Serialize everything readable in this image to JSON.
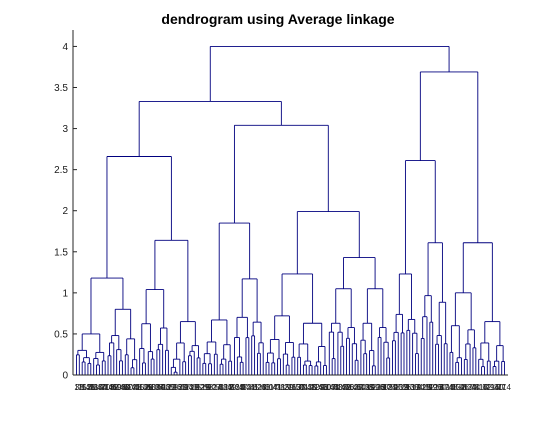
{
  "chart_data": {
    "type": "dendrogram",
    "title": "dendrogram using Average linkage",
    "xlabel": "",
    "ylabel": "",
    "ylim": [
      0,
      4.2
    ],
    "yticks": [
      0,
      0.5,
      1,
      1.5,
      2,
      2.5,
      3,
      3.5,
      4
    ],
    "line_color": "#00007f",
    "leaf_count": 150,
    "leaf_labels_visible_suffix": "27",
    "merges": [
      {
        "name": "root",
        "height": 4.0,
        "children": [
          "left-branch",
          "right-branch"
        ]
      },
      {
        "name": "left-branch",
        "height": 3.33,
        "children": [
          "cluster-a",
          "cluster-bc"
        ]
      },
      {
        "name": "cluster-a",
        "height": 2.66,
        "children": [
          "a1",
          "a2"
        ]
      },
      {
        "name": "a1",
        "height": 1.18,
        "children": [
          "a1l",
          "a1r"
        ]
      },
      {
        "name": "a1l",
        "height": 0.5,
        "children": []
      },
      {
        "name": "a1r",
        "height": 0.8,
        "children": []
      },
      {
        "name": "a2",
        "height": 1.64,
        "children": [
          "a2l",
          "a2r"
        ]
      },
      {
        "name": "a2l",
        "height": 1.04,
        "children": []
      },
      {
        "name": "a2r",
        "height": 0.65,
        "children": []
      },
      {
        "name": "cluster-bc",
        "height": 3.04,
        "children": [
          "cluster-b",
          "cluster-c"
        ]
      },
      {
        "name": "cluster-b",
        "height": 1.85,
        "children": [
          "b1",
          "b2"
        ]
      },
      {
        "name": "b1",
        "height": 0.67,
        "children": []
      },
      {
        "name": "b2",
        "height": 1.17,
        "children": []
      },
      {
        "name": "cluster-c",
        "height": 1.99,
        "children": [
          "c1",
          "c2"
        ]
      },
      {
        "name": "c1",
        "height": 1.23,
        "children": [
          "c1l",
          "c1r"
        ]
      },
      {
        "name": "c1l",
        "height": 0.72,
        "children": []
      },
      {
        "name": "c1r",
        "height": 0.63,
        "children": []
      },
      {
        "name": "c2",
        "height": 1.43,
        "children": [
          "c2l",
          "c2r"
        ]
      },
      {
        "name": "c2l",
        "height": 1.05,
        "children": []
      },
      {
        "name": "c2r",
        "height": 1.05,
        "children": []
      },
      {
        "name": "right-branch",
        "height": 3.69,
        "children": [
          "cluster-d",
          "cluster-e"
        ]
      },
      {
        "name": "cluster-d",
        "height": 2.61,
        "children": [
          "d1",
          "d2"
        ]
      },
      {
        "name": "d1",
        "height": 1.23,
        "children": []
      },
      {
        "name": "d2",
        "height": 1.61,
        "children": []
      },
      {
        "name": "cluster-e",
        "height": 1.61,
        "children": [
          "e1",
          "e2"
        ]
      },
      {
        "name": "e1",
        "height": 1.0,
        "children": []
      },
      {
        "name": "e2",
        "height": 0.65,
        "children": []
      }
    ]
  }
}
